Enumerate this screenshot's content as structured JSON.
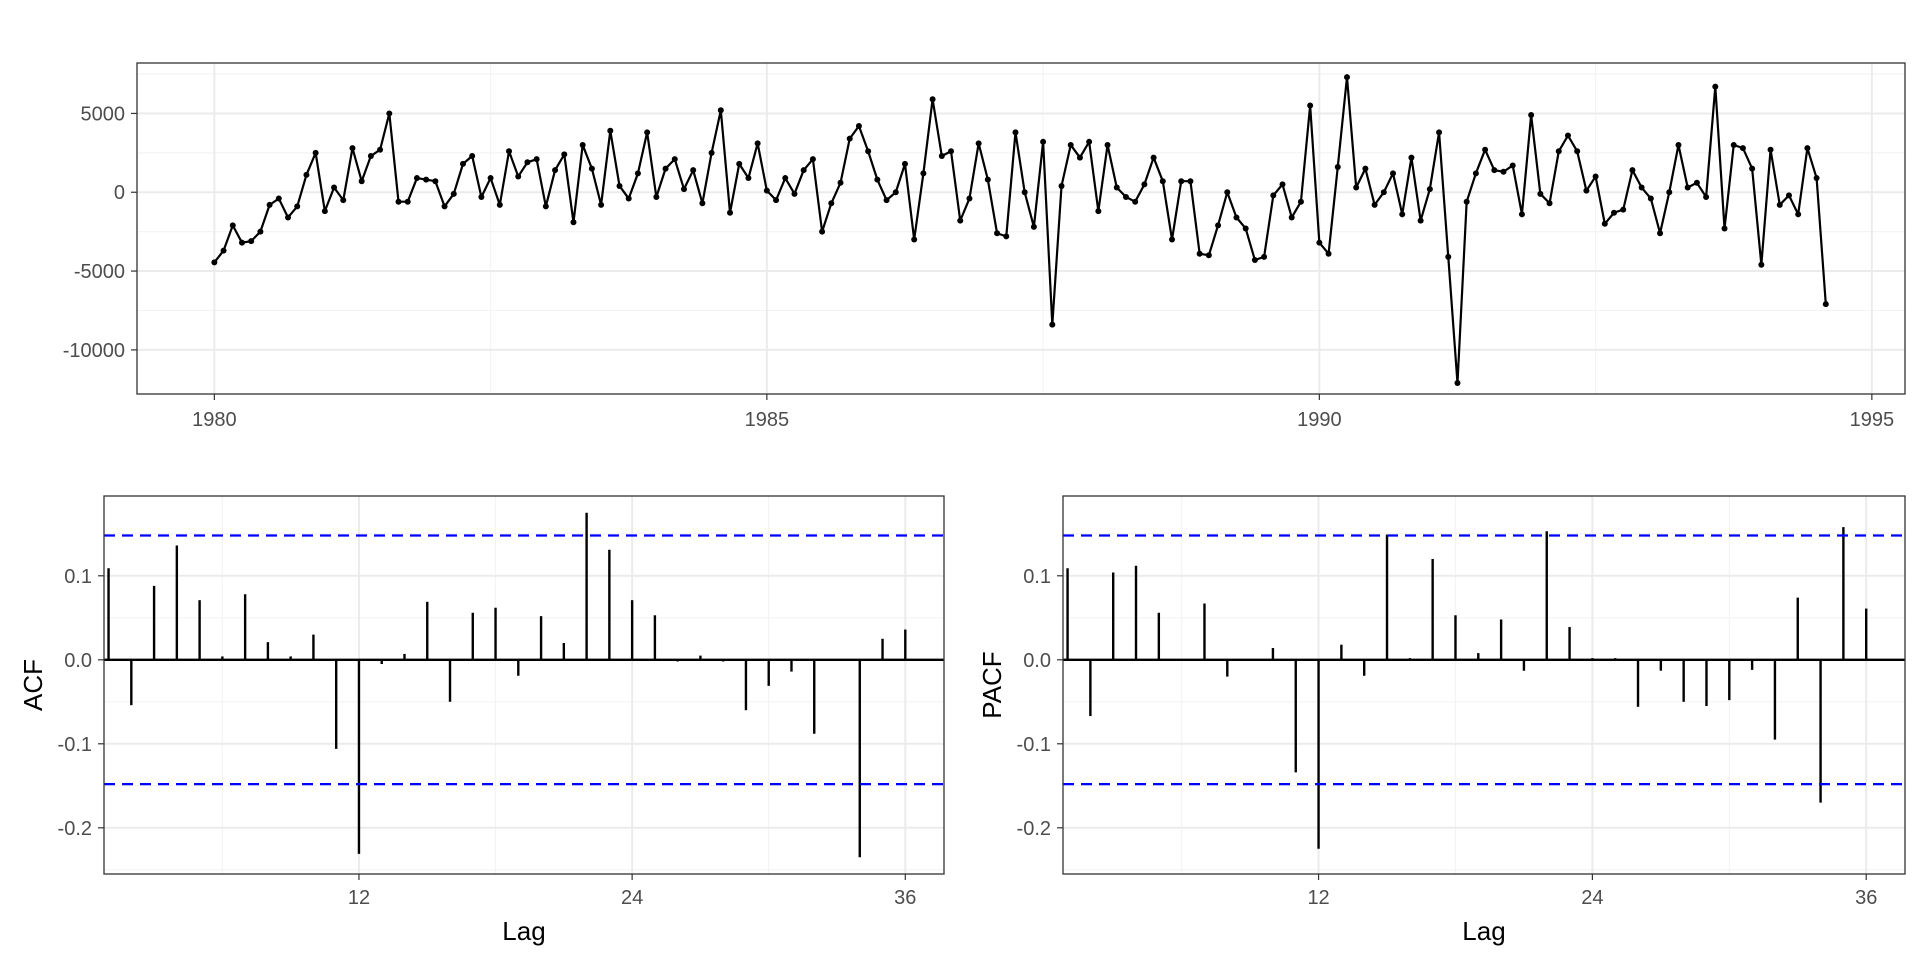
{
  "colors": {
    "background": "#ffffff",
    "panel_border": "#333333",
    "grid_major": "#ebebeb",
    "grid_minor": "#f4f4f4",
    "series": "#000000",
    "confidence_bound": "#0000ff",
    "tick_text": "#4d4d4d"
  },
  "chart_data": [
    {
      "type": "line",
      "markers": true,
      "title": "",
      "xlabel": "",
      "ylabel": "",
      "xlim": [
        1979.3,
        1995.3
      ],
      "ylim": [
        -12800,
        8200
      ],
      "x_ticks": [
        "1980",
        "1985",
        "1990",
        "1995"
      ],
      "y_ticks": [
        "5000",
        "0",
        "-5000",
        "-10000"
      ],
      "grid": true,
      "start": "1980-01",
      "frequency": "monthly",
      "values": [
        -4450,
        -3700,
        -2100,
        -3200,
        -3100,
        -2500,
        -800,
        -400,
        -1600,
        -900,
        1100,
        2500,
        -1200,
        300,
        -500,
        2800,
        700,
        2300,
        2700,
        5000,
        -600,
        -600,
        900,
        800,
        700,
        -900,
        -100,
        1800,
        2300,
        -300,
        900,
        -800,
        2600,
        1000,
        1900,
        2100,
        -900,
        1400,
        2400,
        -1900,
        3000,
        1500,
        -800,
        3900,
        400,
        -400,
        1200,
        3800,
        -300,
        1500,
        2100,
        200,
        1400,
        -700,
        2500,
        5200,
        -1300,
        1800,
        900,
        3100,
        100,
        -500,
        900,
        -100,
        1400,
        2100,
        -2500,
        -700,
        600,
        3400,
        4200,
        2600,
        800,
        -500,
        0,
        1800,
        -3000,
        1200,
        5900,
        2300,
        2600,
        -1800,
        -400,
        3100,
        800,
        -2600,
        -2800,
        3800,
        0,
        -2200,
        3200,
        -8400,
        400,
        3000,
        2200,
        3200,
        -1200,
        3000,
        300,
        -300,
        -600,
        500,
        2200,
        700,
        -3000,
        700,
        700,
        -3900,
        -4000,
        -2100,
        0,
        -1600,
        -2300,
        -4300,
        -4100,
        -200,
        500,
        -1600,
        -600,
        5500,
        -3200,
        -3900,
        1600,
        7300,
        300,
        1500,
        -800,
        0,
        1200,
        -1400,
        2200,
        -1800,
        200,
        3800,
        -4100,
        -12100,
        -600,
        1200,
        2700,
        1400,
        1300,
        1700,
        -1400,
        4900,
        -100,
        -700,
        2600,
        3600,
        2600,
        100,
        1000,
        -2000,
        -1300,
        -1100,
        1400,
        300,
        -400,
        -2600,
        0,
        3000,
        300,
        600,
        -300,
        6700,
        -2300,
        3000,
        2800,
        1500,
        -4600,
        2700,
        -800,
        -200,
        -1400,
        2800,
        900,
        -7100
      ]
    },
    {
      "type": "bar",
      "title": "",
      "xlabel": "Lag",
      "ylabel": "ACF",
      "xlim": [
        0.8,
        37.7
      ],
      "ylim": [
        -0.255,
        0.195
      ],
      "x_ticks": [
        "12",
        "24",
        "36"
      ],
      "y_ticks": [
        "0.1",
        "0.0",
        "-0.1",
        "-0.2"
      ],
      "confidence_bounds": [
        0.148,
        -0.148
      ],
      "grid": true,
      "lags": [
        1,
        2,
        3,
        4,
        5,
        6,
        7,
        8,
        9,
        10,
        11,
        12,
        13,
        14,
        15,
        16,
        17,
        18,
        19,
        20,
        21,
        22,
        23,
        24,
        25,
        26,
        27,
        28,
        29,
        30,
        31,
        32,
        33,
        34,
        35,
        36
      ],
      "values": [
        0.109,
        -0.054,
        0.088,
        0.136,
        0.071,
        0.004,
        0.078,
        0.021,
        0.004,
        0.03,
        -0.106,
        -0.231,
        -0.005,
        0.007,
        0.069,
        -0.05,
        0.056,
        0.062,
        -0.019,
        0.052,
        0.02,
        0.175,
        0.131,
        0.071,
        0.053,
        -0.002,
        0.005,
        -0.002,
        -0.06,
        -0.031,
        -0.014,
        -0.088,
        0.0,
        -0.235,
        0.025,
        0.036
      ]
    },
    {
      "type": "bar",
      "title": "",
      "xlabel": "Lag",
      "ylabel": "PACF",
      "xlim": [
        0.8,
        37.7
      ],
      "ylim": [
        -0.255,
        0.195
      ],
      "x_ticks": [
        "12",
        "24",
        "36"
      ],
      "y_ticks": [
        "0.1",
        "0.0",
        "-0.1",
        "-0.2"
      ],
      "confidence_bounds": [
        0.148,
        -0.148
      ],
      "grid": true,
      "lags": [
        1,
        2,
        3,
        4,
        5,
        6,
        7,
        8,
        9,
        10,
        11,
        12,
        13,
        14,
        15,
        16,
        17,
        18,
        19,
        20,
        21,
        22,
        23,
        24,
        25,
        26,
        27,
        28,
        29,
        30,
        31,
        32,
        33,
        34,
        35,
        36
      ],
      "values": [
        0.109,
        -0.067,
        0.104,
        0.112,
        0.056,
        0.0,
        0.067,
        -0.02,
        0.0,
        0.014,
        -0.134,
        -0.225,
        0.018,
        -0.019,
        0.149,
        0.002,
        0.12,
        0.053,
        0.008,
        0.048,
        -0.013,
        0.153,
        0.039,
        0.002,
        0.002,
        -0.056,
        -0.013,
        -0.05,
        -0.055,
        -0.048,
        -0.012,
        -0.095,
        0.074,
        -0.17,
        0.158,
        0.061
      ]
    }
  ]
}
